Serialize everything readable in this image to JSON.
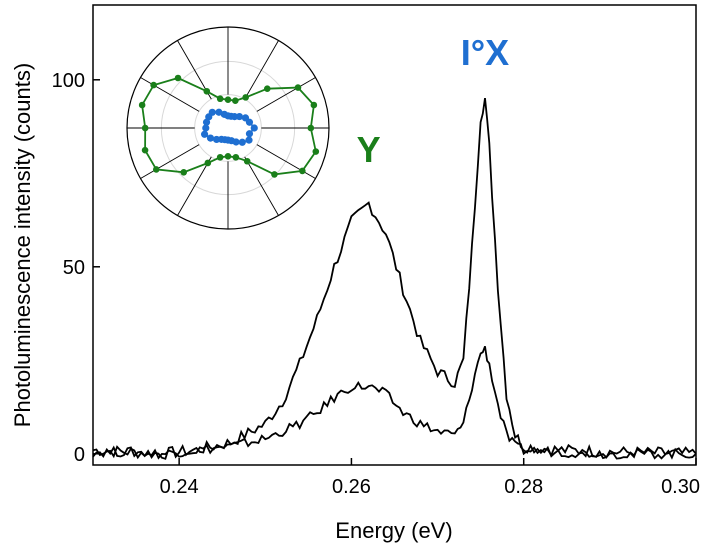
{
  "chart_data": {
    "type": "line",
    "xlabel": "Energy (eV)",
    "ylabel": "Photoluminescence intensity (counts)",
    "xlim": [
      0.23,
      0.3
    ],
    "ylim": [
      -3,
      120
    ],
    "x_ticks": [
      0.24,
      0.26,
      0.28,
      0.3
    ],
    "x_tick_labels": [
      "0.24",
      "0.26",
      "0.28",
      "0.30"
    ],
    "y_ticks": [
      0,
      50,
      100
    ],
    "y_tick_labels": [
      "0",
      "50",
      "100"
    ],
    "grid": false,
    "legend": "none",
    "line_color": "#000000",
    "series": [
      {
        "x": [
          0.23,
          0.234,
          0.238,
          0.242,
          0.246,
          0.25,
          0.252,
          0.254,
          0.256,
          0.258,
          0.26,
          0.262,
          0.264,
          0.266,
          0.268,
          0.27,
          0.272,
          0.273,
          0.274,
          0.275,
          0.2755,
          0.276,
          0.277,
          0.278,
          0.279,
          0.28,
          0.284,
          0.29,
          0.3
        ],
        "y": [
          1,
          0.5,
          0,
          1,
          3,
          8,
          14,
          24,
          36,
          50,
          62,
          67,
          59,
          44,
          30,
          22,
          19,
          25,
          55,
          90,
          95,
          82,
          45,
          16,
          5,
          2,
          1,
          0.5,
          0
        ]
      },
      {
        "x": [
          0.23,
          0.234,
          0.238,
          0.242,
          0.246,
          0.25,
          0.252,
          0.254,
          0.256,
          0.258,
          0.26,
          0.262,
          0.264,
          0.266,
          0.268,
          0.27,
          0.272,
          0.273,
          0.274,
          0.275,
          0.2755,
          0.276,
          0.277,
          0.278,
          0.279,
          0.28,
          0.284,
          0.29,
          0.3
        ],
        "y": [
          0.5,
          0.5,
          0,
          1,
          2,
          4,
          6,
          8,
          11,
          15,
          18,
          18,
          16,
          11,
          8,
          6,
          5,
          8,
          18,
          27,
          28,
          24,
          13,
          5,
          2,
          1,
          0.5,
          0,
          0
        ]
      }
    ],
    "annotations": [
      {
        "text": "Y",
        "color": "#1a7f1a",
        "x": 0.262,
        "y": 78
      },
      {
        "text": "I°X",
        "color": "#1f6fd1",
        "x": 0.2755,
        "y": 104
      }
    ],
    "inset": {
      "type": "polar",
      "green_color": "#1a7f1a",
      "blue_color": "#1f6fd1",
      "angles_deg": [
        0,
        15,
        30,
        45,
        60,
        75,
        90,
        105,
        120,
        135,
        150,
        165,
        180,
        195,
        210,
        225,
        240,
        255,
        270,
        285,
        300,
        315,
        330,
        345
      ],
      "green_r": [
        0.82,
        0.88,
        0.8,
        0.55,
        0.35,
        0.28,
        0.28,
        0.3,
        0.42,
        0.7,
        0.85,
        0.88,
        0.82,
        0.85,
        0.82,
        0.62,
        0.4,
        0.3,
        0.28,
        0.3,
        0.38,
        0.65,
        0.85,
        0.9
      ],
      "blue_r": [
        0.26,
        0.22,
        0.2,
        0.16,
        0.13,
        0.12,
        0.12,
        0.14,
        0.18,
        0.22,
        0.22,
        0.22,
        0.22,
        0.24,
        0.2,
        0.16,
        0.13,
        0.12,
        0.12,
        0.13,
        0.16,
        0.2,
        0.24,
        0.22
      ]
    }
  }
}
